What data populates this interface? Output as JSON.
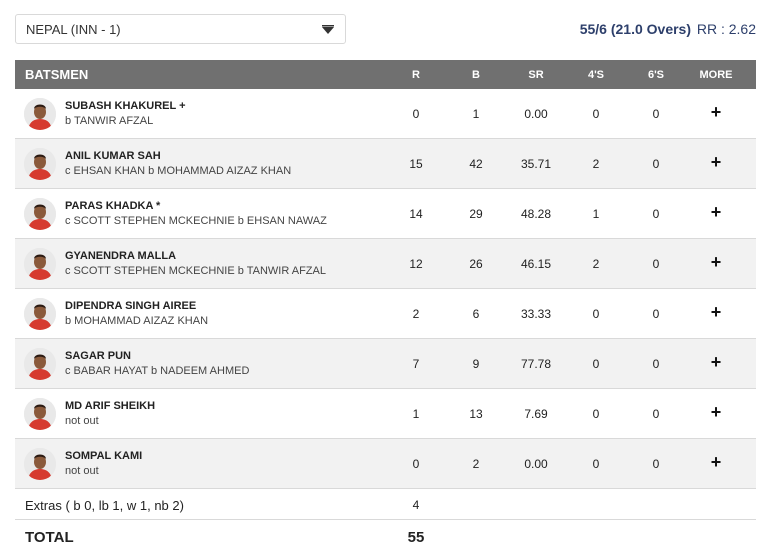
{
  "header": {
    "inning_select": "NEPAL (INN - 1)",
    "score": "55/6 (21.0 Overs)",
    "run_rate": "RR : 2.62"
  },
  "columns": {
    "batsmen": "BATSMEN",
    "r": "R",
    "b": "B",
    "sr": "SR",
    "fours": "4'S",
    "sixes": "6'S",
    "more": "MORE"
  },
  "batsmen": [
    {
      "name": "SUBASH KHAKUREL +",
      "dismissal": "b TANWIR AFZAL",
      "r": "0",
      "b": "1",
      "sr": "0.00",
      "fours": "0",
      "sixes": "0"
    },
    {
      "name": "ANIL KUMAR SAH",
      "dismissal": "c EHSAN KHAN b MOHAMMAD AIZAZ KHAN",
      "r": "15",
      "b": "42",
      "sr": "35.71",
      "fours": "2",
      "sixes": "0"
    },
    {
      "name": "PARAS KHADKA *",
      "dismissal": "c SCOTT STEPHEN MCKECHNIE b EHSAN NAWAZ",
      "r": "14",
      "b": "29",
      "sr": "48.28",
      "fours": "1",
      "sixes": "0"
    },
    {
      "name": "GYANENDRA MALLA",
      "dismissal": "c SCOTT STEPHEN MCKECHNIE b TANWIR AFZAL",
      "r": "12",
      "b": "26",
      "sr": "46.15",
      "fours": "2",
      "sixes": "0"
    },
    {
      "name": "DIPENDRA SINGH AIREE",
      "dismissal": "b MOHAMMAD AIZAZ KHAN",
      "r": "2",
      "b": "6",
      "sr": "33.33",
      "fours": "0",
      "sixes": "0"
    },
    {
      "name": "SAGAR PUN",
      "dismissal": "c BABAR HAYAT b NADEEM AHMED",
      "r": "7",
      "b": "9",
      "sr": "77.78",
      "fours": "0",
      "sixes": "0"
    },
    {
      "name": "MD ARIF SHEIKH",
      "dismissal": "not out",
      "r": "1",
      "b": "13",
      "sr": "7.69",
      "fours": "0",
      "sixes": "0"
    },
    {
      "name": "SOMPAL KAMI",
      "dismissal": "not out",
      "r": "0",
      "b": "2",
      "sr": "0.00",
      "fours": "0",
      "sixes": "0"
    }
  ],
  "more_icon": "+",
  "extras": {
    "label": "Extras ( b 0, lb 1, w 1, nb 2)",
    "value": "4"
  },
  "total": {
    "label": "TOTAL",
    "value": "55"
  },
  "colors": {
    "header_bg": "#707070",
    "score_text": "#2d3f6b",
    "row_alt": "#f2f2f2",
    "jersey": "#d63a2f"
  }
}
